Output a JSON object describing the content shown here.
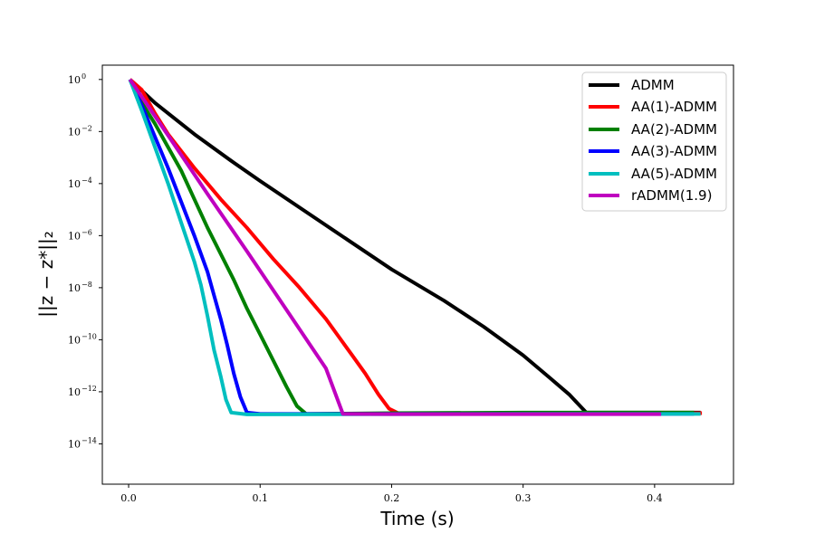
{
  "chart_data": {
    "type": "line",
    "xlabel": "Time (s)",
    "ylabel": "||z − z*||₂",
    "y_scale": "log",
    "xlim": [
      -0.02,
      0.46
    ],
    "ylim_exponent": [
      -15.55,
      0.55
    ],
    "x_ticks": [
      {
        "value": 0.0,
        "label": "0.0"
      },
      {
        "value": 0.1,
        "label": "0.1"
      },
      {
        "value": 0.2,
        "label": "0.2"
      },
      {
        "value": 0.3,
        "label": "0.3"
      },
      {
        "value": 0.4,
        "label": "0.4"
      }
    ],
    "y_ticks": [
      {
        "exponent": 0,
        "label": "10",
        "sup": "0"
      },
      {
        "exponent": -2,
        "label": "10",
        "sup": "−2"
      },
      {
        "exponent": -4,
        "label": "10",
        "sup": "−4"
      },
      {
        "exponent": -6,
        "label": "10",
        "sup": "−6"
      },
      {
        "exponent": -8,
        "label": "10",
        "sup": "−8"
      },
      {
        "exponent": -10,
        "label": "10",
        "sup": "−10"
      },
      {
        "exponent": -12,
        "label": "10",
        "sup": "−12"
      },
      {
        "exponent": -14,
        "label": "10",
        "sup": "−14"
      }
    ],
    "grid": false,
    "legend_position": "top-right",
    "series": [
      {
        "name": "ADMM",
        "color": "#000000",
        "points": [
          [
            0.001,
            0
          ],
          [
            0.02,
            -0.9
          ],
          [
            0.05,
            -2.1
          ],
          [
            0.08,
            -3.2
          ],
          [
            0.1,
            -3.9
          ],
          [
            0.15,
            -5.6
          ],
          [
            0.2,
            -7.3
          ],
          [
            0.24,
            -8.5
          ],
          [
            0.27,
            -9.5
          ],
          [
            0.3,
            -10.6
          ],
          [
            0.32,
            -11.45
          ],
          [
            0.335,
            -12.1
          ],
          [
            0.348,
            -12.8
          ],
          [
            0.36,
            -12.8
          ],
          [
            0.435,
            -12.8
          ]
        ]
      },
      {
        "name": "AA(1)-ADMM",
        "color": "#ff0000",
        "points": [
          [
            0.001,
            0
          ],
          [
            0.01,
            -0.4
          ],
          [
            0.02,
            -1.3
          ],
          [
            0.03,
            -2.1
          ],
          [
            0.05,
            -3.4
          ],
          [
            0.07,
            -4.6
          ],
          [
            0.09,
            -5.7
          ],
          [
            0.11,
            -6.9
          ],
          [
            0.13,
            -8.0
          ],
          [
            0.15,
            -9.2
          ],
          [
            0.16,
            -9.9
          ],
          [
            0.17,
            -10.6
          ],
          [
            0.18,
            -11.3
          ],
          [
            0.19,
            -12.1
          ],
          [
            0.198,
            -12.65
          ],
          [
            0.205,
            -12.82
          ],
          [
            0.25,
            -12.82
          ],
          [
            0.35,
            -12.82
          ],
          [
            0.436,
            -12.82
          ]
        ]
      },
      {
        "name": "AA(2)-ADMM",
        "color": "#008000",
        "points": [
          [
            0.001,
            0
          ],
          [
            0.01,
            -0.9
          ],
          [
            0.02,
            -1.7
          ],
          [
            0.03,
            -2.6
          ],
          [
            0.04,
            -3.5
          ],
          [
            0.05,
            -4.6
          ],
          [
            0.06,
            -5.7
          ],
          [
            0.07,
            -6.7
          ],
          [
            0.08,
            -7.7
          ],
          [
            0.09,
            -8.8
          ],
          [
            0.1,
            -9.8
          ],
          [
            0.11,
            -10.8
          ],
          [
            0.12,
            -11.8
          ],
          [
            0.128,
            -12.55
          ],
          [
            0.135,
            -12.85
          ],
          [
            0.2,
            -12.82
          ],
          [
            0.3,
            -12.8
          ],
          [
            0.43,
            -12.8
          ]
        ]
      },
      {
        "name": "AA(3)-ADMM",
        "color": "#0000ff",
        "points": [
          [
            0.001,
            0
          ],
          [
            0.01,
            -1.0
          ],
          [
            0.02,
            -2.2
          ],
          [
            0.03,
            -3.4
          ],
          [
            0.04,
            -4.7
          ],
          [
            0.05,
            -6.0
          ],
          [
            0.06,
            -7.4
          ],
          [
            0.065,
            -8.3
          ],
          [
            0.07,
            -9.2
          ],
          [
            0.075,
            -10.2
          ],
          [
            0.08,
            -11.3
          ],
          [
            0.085,
            -12.2
          ],
          [
            0.09,
            -12.8
          ],
          [
            0.1,
            -12.85
          ],
          [
            0.2,
            -12.85
          ],
          [
            0.3,
            -12.85
          ],
          [
            0.43,
            -12.85
          ]
        ]
      },
      {
        "name": "AA(5)-ADMM",
        "color": "#00bfbf",
        "points": [
          [
            0.001,
            0
          ],
          [
            0.01,
            -1.2
          ],
          [
            0.02,
            -2.6
          ],
          [
            0.03,
            -4.0
          ],
          [
            0.04,
            -5.5
          ],
          [
            0.05,
            -7.0
          ],
          [
            0.055,
            -7.9
          ],
          [
            0.06,
            -9.1
          ],
          [
            0.065,
            -10.4
          ],
          [
            0.07,
            -11.4
          ],
          [
            0.074,
            -12.3
          ],
          [
            0.078,
            -12.8
          ],
          [
            0.09,
            -12.87
          ],
          [
            0.2,
            -12.86
          ],
          [
            0.3,
            -12.85
          ],
          [
            0.435,
            -12.85
          ]
        ]
      },
      {
        "name": "rADMM(1.9)",
        "color": "#bf00bf",
        "points": [
          [
            0.001,
            0
          ],
          [
            0.03,
            -2.15
          ],
          [
            0.06,
            -4.4
          ],
          [
            0.09,
            -6.6
          ],
          [
            0.12,
            -8.85
          ],
          [
            0.15,
            -11.1
          ],
          [
            0.163,
            -12.85
          ],
          [
            0.2,
            -12.86
          ],
          [
            0.3,
            -12.86
          ],
          [
            0.405,
            -12.86
          ]
        ]
      }
    ]
  }
}
